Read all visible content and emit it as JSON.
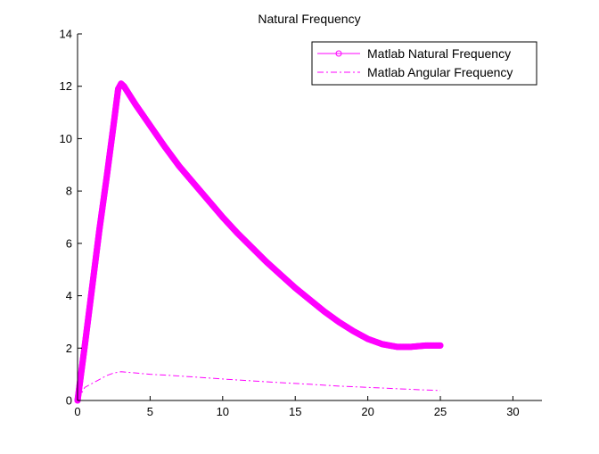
{
  "chart_data": {
    "type": "line",
    "title": "Natural Frequency",
    "xlabel": "",
    "ylabel": "",
    "xlim": [
      0,
      32
    ],
    "ylim": [
      0,
      14
    ],
    "xticks": [
      0,
      5,
      10,
      15,
      20,
      25,
      30
    ],
    "yticks": [
      0,
      2,
      4,
      6,
      8,
      10,
      12,
      14
    ],
    "grid": false,
    "legend_position": "top-right",
    "series": [
      {
        "name": "Matlab Natural Frequency",
        "style": "solid-circle-markers",
        "color": "#ff00ff",
        "x": [
          0,
          0.5,
          1.0,
          1.5,
          2.0,
          2.5,
          2.8,
          3.0,
          3.2,
          4,
          5,
          6,
          7,
          8,
          9,
          10,
          11,
          12,
          13,
          14,
          15,
          16,
          17,
          18,
          19,
          20,
          21,
          22,
          23,
          24,
          25
        ],
        "y": [
          0,
          2.1,
          4.3,
          6.5,
          8.5,
          10.6,
          11.9,
          12.1,
          12.0,
          11.3,
          10.5,
          9.7,
          8.95,
          8.3,
          7.65,
          7.0,
          6.4,
          5.85,
          5.3,
          4.8,
          4.3,
          3.85,
          3.4,
          3.0,
          2.65,
          2.35,
          2.15,
          2.05,
          2.05,
          2.1,
          2.1
        ]
      },
      {
        "name": "Matlab Angular Frequency",
        "style": "dash-dot",
        "color": "#ff00ff",
        "x": [
          0,
          0.5,
          1,
          1.5,
          2,
          2.5,
          3,
          4,
          5,
          6,
          8,
          10,
          12,
          14,
          16,
          18,
          20,
          22,
          24,
          25
        ],
        "y": [
          0,
          0.5,
          0.65,
          0.8,
          0.95,
          1.05,
          1.1,
          1.05,
          1.0,
          0.97,
          0.9,
          0.82,
          0.75,
          0.68,
          0.62,
          0.55,
          0.5,
          0.45,
          0.4,
          0.38
        ]
      }
    ]
  }
}
